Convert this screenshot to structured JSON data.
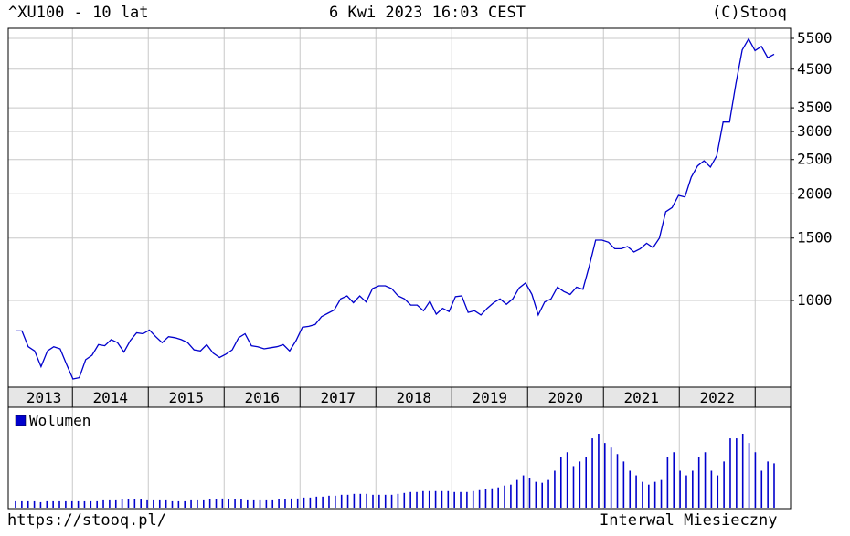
{
  "header": {
    "left": "^XU100 - 10 lat",
    "center": "6 Kwi 2023 16:03 CEST",
    "right": "(C)Stooq"
  },
  "footer": {
    "left": "https://stooq.pl/",
    "right": "Interwal Miesieczny"
  },
  "colors": {
    "line": "#0000cc",
    "volume": "#0000cc",
    "grid": "#c8c8c8",
    "axis_band": "#e6e6e6"
  },
  "chart_data": [
    {
      "type": "line",
      "name": "price",
      "scale": "log",
      "x_tick_labels": [
        "2013",
        "2014",
        "2015",
        "2016",
        "2017",
        "2018",
        "2019",
        "2020",
        "2021",
        "2022"
      ],
      "y_tick_labels": [
        "5500",
        "4500",
        "3500",
        "3000",
        "2500",
        "2000",
        "1500",
        "1000"
      ],
      "y_ticks": [
        5500,
        4500,
        3500,
        3000,
        2500,
        2000,
        1500,
        1000
      ],
      "ylim": [
        560,
        5900
      ],
      "x_start": "2013-04",
      "x_end": "2023-04",
      "grid": true,
      "values": [
        820,
        820,
        740,
        720,
        650,
        720,
        740,
        730,
        660,
        600,
        605,
        680,
        700,
        750,
        745,
        775,
        760,
        715,
        770,
        810,
        805,
        825,
        790,
        760,
        790,
        785,
        775,
        760,
        725,
        720,
        750,
        710,
        690,
        705,
        725,
        785,
        805,
        745,
        740,
        730,
        735,
        740,
        750,
        720,
        770,
        840,
        845,
        855,
        900,
        920,
        940,
        1010,
        1030,
        985,
        1030,
        990,
        1080,
        1100,
        1100,
        1080,
        1030,
        1010,
        970,
        970,
        935,
        995,
        915,
        950,
        930,
        1025,
        1030,
        925,
        935,
        910,
        950,
        985,
        1010,
        975,
        1010,
        1085,
        1120,
        1040,
        910,
        990,
        1010,
        1090,
        1060,
        1040,
        1090,
        1075,
        1250,
        1480,
        1480,
        1460,
        1400,
        1400,
        1420,
        1370,
        1400,
        1450,
        1410,
        1500,
        1780,
        1830,
        1980,
        1960,
        2230,
        2400,
        2480,
        2380,
        2560,
        3190,
        3190,
        4100,
        5100,
        5480,
        5080,
        5220,
        4850,
        4960
      ]
    },
    {
      "type": "bar",
      "name": "volume",
      "legend": "Wolumen",
      "values": [
        7,
        7,
        7,
        7,
        6,
        7,
        7,
        7,
        7,
        7,
        7,
        7,
        7,
        7,
        8,
        8,
        8,
        9,
        9,
        9,
        9,
        8,
        8,
        8,
        8,
        7,
        7,
        7,
        8,
        8,
        8,
        9,
        9,
        10,
        9,
        9,
        9,
        8,
        8,
        8,
        8,
        8,
        9,
        9,
        10,
        10,
        11,
        11,
        12,
        12,
        13,
        13,
        14,
        14,
        15,
        15,
        15,
        14,
        14,
        14,
        14,
        15,
        16,
        17,
        17,
        18,
        18,
        18,
        18,
        18,
        17,
        17,
        17,
        18,
        19,
        20,
        21,
        22,
        24,
        25,
        30,
        35,
        32,
        28,
        27,
        30,
        40,
        55,
        60,
        45,
        50,
        55,
        75,
        80,
        70,
        65,
        58,
        50,
        40,
        35,
        28,
        25,
        28,
        30,
        55,
        60,
        40,
        35,
        40,
        55,
        60,
        40,
        35,
        50,
        75,
        75,
        80,
        70,
        60,
        40,
        50,
        48
      ]
    }
  ]
}
